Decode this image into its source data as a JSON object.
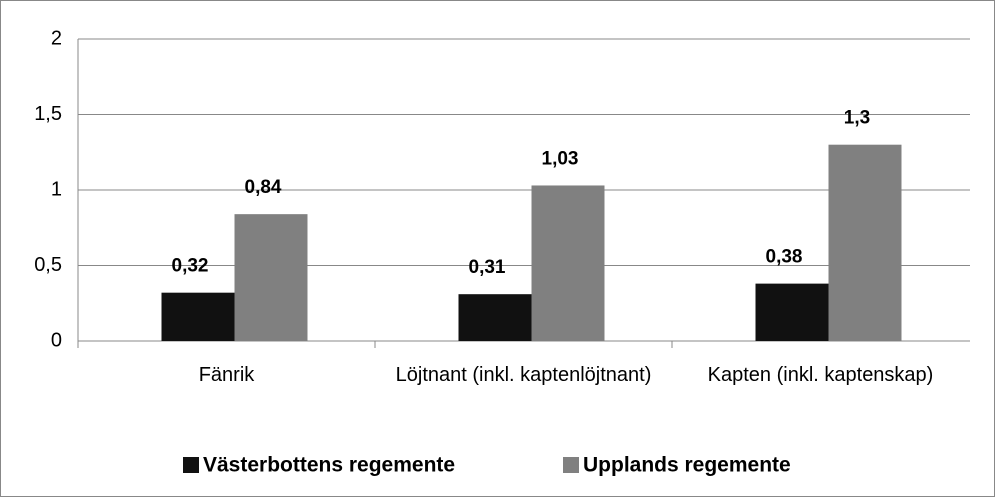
{
  "chart_data": {
    "type": "bar",
    "categories": [
      "Fänrik",
      "Löjtnant (inkl. kaptenlöjtnant)",
      "Kapten (inkl. kaptenskap)"
    ],
    "series": [
      {
        "name": "Västerbottens regemente",
        "color": "#111111",
        "values": [
          0.32,
          0.31,
          0.38
        ],
        "value_labels": [
          "0,32",
          "0,31",
          "0,38"
        ]
      },
      {
        "name": "Upplands regemente",
        "color": "#808080",
        "values": [
          0.84,
          1.03,
          1.3
        ],
        "value_labels": [
          "0,84",
          "1,03",
          "1,3"
        ]
      }
    ],
    "ylim": [
      0,
      2
    ],
    "yticks": [
      0,
      {
        "value": 0.5,
        "label": "0,5"
      },
      1,
      {
        "value": 1.5,
        "label": "1,5"
      },
      2
    ],
    "grid": true,
    "legend": "bottom"
  }
}
